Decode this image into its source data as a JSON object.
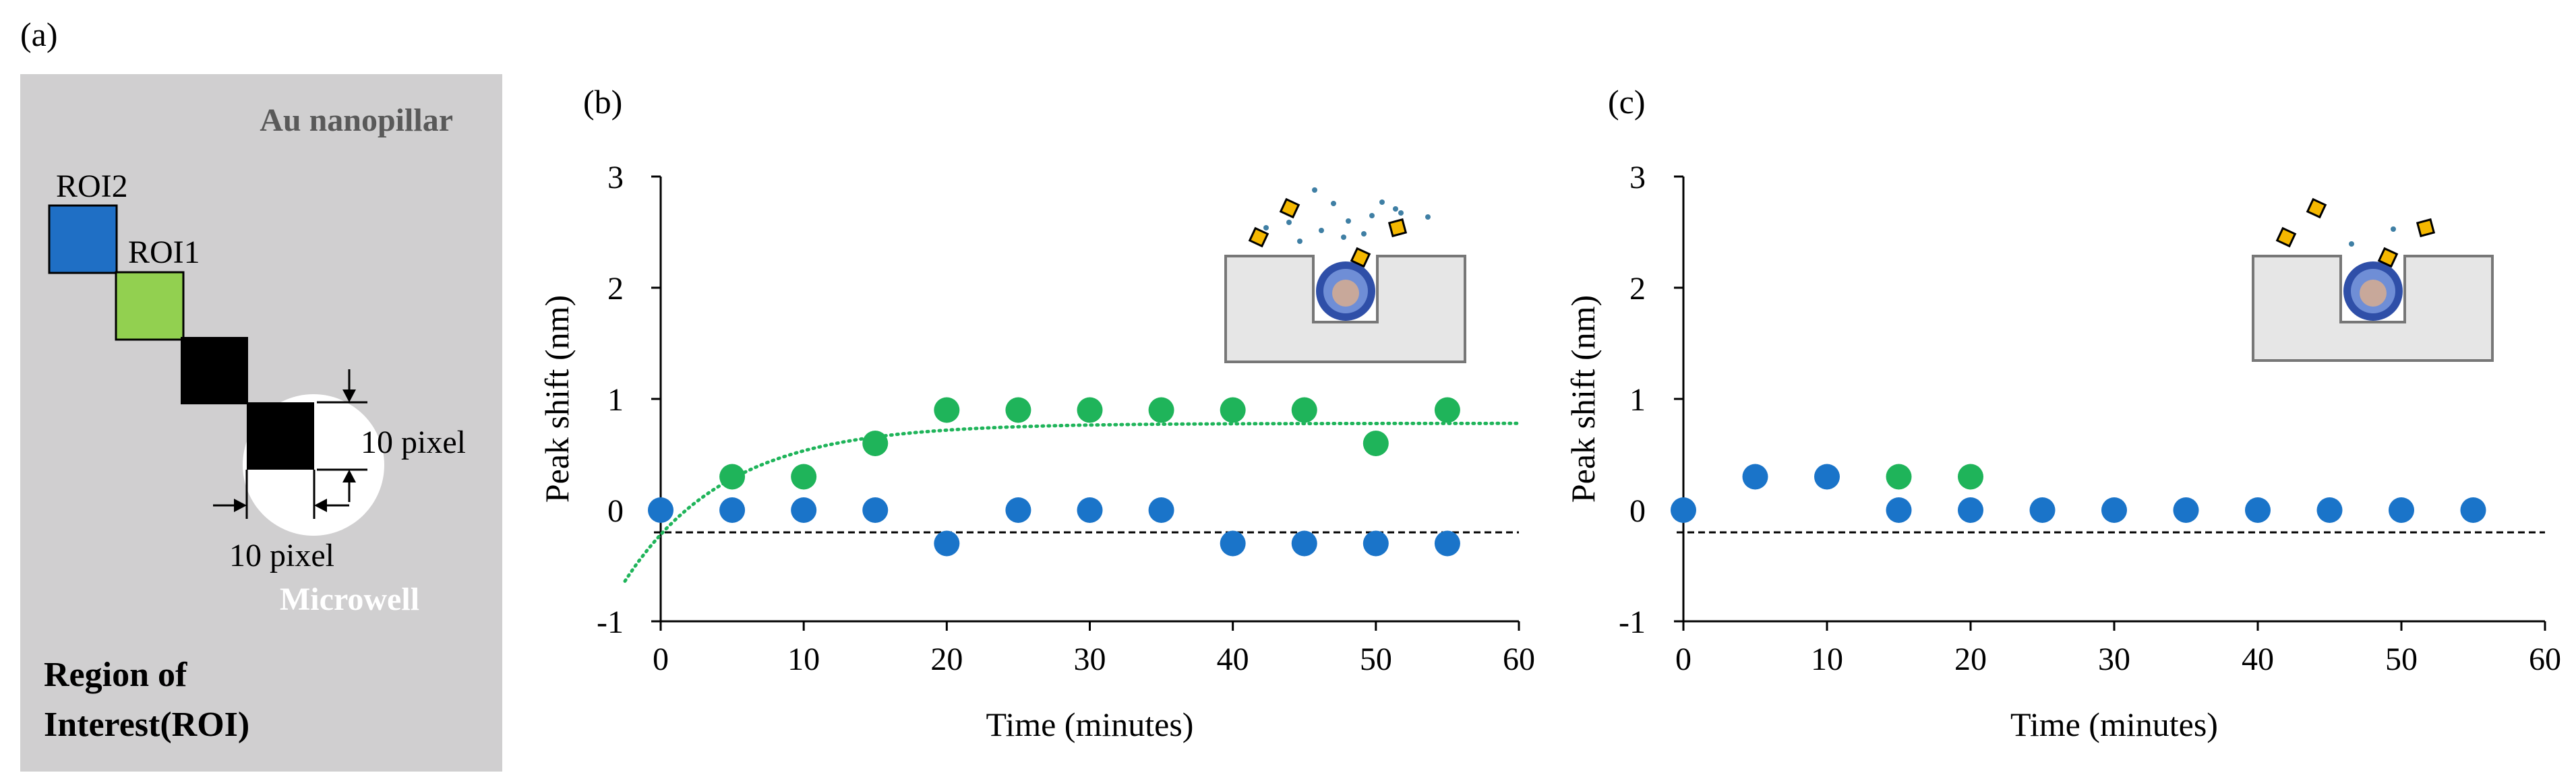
{
  "colors": {
    "panel_bg": "#d0cfd0",
    "roi2": "#1f6fc5",
    "roi1": "#92d050",
    "green_series": "#1fb45a",
    "blue_series": "#1a74c9",
    "gold": "#f5b800",
    "well_gray": "#e6e6e6"
  },
  "panel_a": {
    "label": "(a)",
    "au_label": "Au nanopillar",
    "roi2_label": "ROI2",
    "roi1_label": "ROI1",
    "pixel_label_right": "10 pixel",
    "pixel_label_bottom": "10 pixel",
    "microwell_label": "Microwell",
    "region_line1": "Region of",
    "region_line2": "Interest(ROI)"
  },
  "chart_data": [
    {
      "panel_label": "(b)",
      "type": "scatter",
      "xlabel": "Time (minutes)",
      "ylabel": "Peak shift (nm)",
      "xlim": [
        0,
        60
      ],
      "ylim": [
        -1,
        3
      ],
      "xticks": [
        0,
        10,
        20,
        30,
        40,
        50,
        60
      ],
      "yticks": [
        -1,
        0,
        1,
        2,
        3
      ],
      "baseline": -0.2,
      "series": [
        {
          "name": "ROI1",
          "color": "#1fb45a",
          "x": [
            5,
            10,
            15,
            20,
            25,
            30,
            35,
            40,
            45,
            50,
            55
          ],
          "y": [
            0.3,
            0.3,
            0.6,
            0.9,
            0.9,
            0.9,
            0.9,
            0.9,
            0.9,
            0.6,
            0.9
          ]
        },
        {
          "name": "ROI2",
          "color": "#1a74c9",
          "x": [
            0,
            5,
            10,
            15,
            20,
            25,
            30,
            35,
            40,
            45,
            50,
            55
          ],
          "y": [
            0,
            0,
            0,
            0,
            -0.3,
            0,
            0,
            0,
            -0.3,
            -0.3,
            -0.3,
            -0.3
          ]
        }
      ],
      "fit": {
        "color": "#1fb45a",
        "a": 0.78,
        "b": 1.0,
        "k": 0.14,
        "x_start": -2.5,
        "x_end": 60
      }
    },
    {
      "panel_label": "(c)",
      "type": "scatter",
      "xlabel": "Time (minutes)",
      "ylabel": "Peak shift (nm)",
      "xlim": [
        0,
        60
      ],
      "ylim": [
        -1,
        3
      ],
      "xticks": [
        0,
        10,
        20,
        30,
        40,
        50,
        60
      ],
      "yticks": [
        -1,
        0,
        1,
        2,
        3
      ],
      "baseline": -0.2,
      "series": [
        {
          "name": "ROI1",
          "color": "#1fb45a",
          "x": [
            15,
            20
          ],
          "y": [
            0.3,
            0.3
          ]
        },
        {
          "name": "ROI2",
          "color": "#1a74c9",
          "x": [
            0,
            5,
            10,
            15,
            20,
            25,
            30,
            35,
            40,
            45,
            50,
            55
          ],
          "y": [
            0,
            0.3,
            0.3,
            0,
            0,
            0,
            0,
            0,
            0,
            0,
            0,
            0
          ]
        }
      ],
      "fit": null
    }
  ]
}
